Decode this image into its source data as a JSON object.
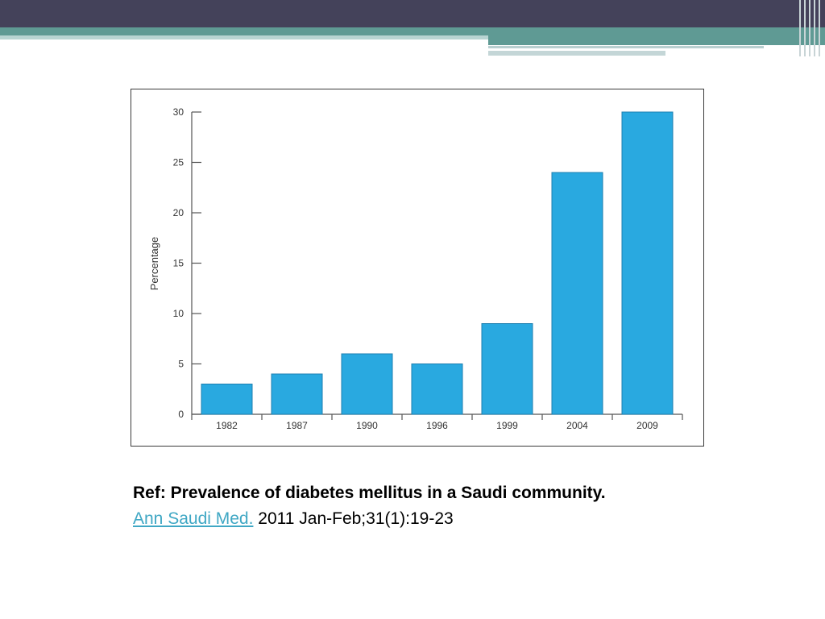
{
  "chart_data": {
    "type": "bar",
    "categories": [
      "1982",
      "1987",
      "1990",
      "1996",
      "1999",
      "2004",
      "2009"
    ],
    "values": [
      3,
      4,
      6,
      5,
      9,
      24,
      30
    ],
    "title": "",
    "xlabel": "",
    "ylabel": "Percentage",
    "ylim": [
      0,
      30
    ],
    "yticks": [
      0,
      5,
      10,
      15,
      20,
      25,
      30
    ],
    "grid": false,
    "bar_color": "#29a9e0"
  },
  "reference": {
    "title": "Ref: Prevalence of diabetes mellitus in a Saudi community.",
    "journal": "Ann Saudi Med.",
    "citation": "2011 Jan-Feb;31(1):19-23"
  },
  "colors": {
    "header_dark": "#44425a",
    "header_teal": "#5f9a94",
    "link": "#3fa7c4"
  }
}
